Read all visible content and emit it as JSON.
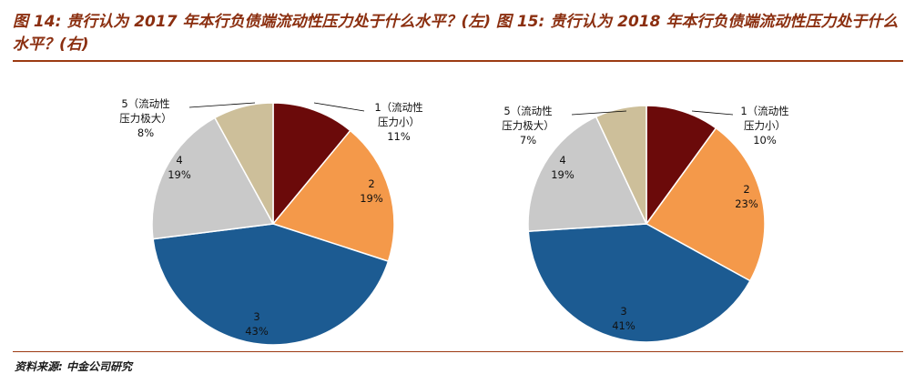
{
  "title": "图 14: 贵行认为 2017 年本行负债端流动性压力处于什么水平？(左)  图 15: 贵行认为 2018 年本行负债端流动性压力处于什么水平？(右)",
  "source": "资料来源: 中金公司研究",
  "colors": {
    "slice_1": "#6b0a0a",
    "slice_2": "#f4994a",
    "slice_3": "#1c5b92",
    "slice_4": "#c9c9c9",
    "slice_5": "#cdbf9a",
    "title": "#8b2f10",
    "rule": "#9c3a12"
  },
  "chart_data": [
    {
      "type": "pie",
      "title": "",
      "categories": [
        "1（流动性压力小）",
        "2",
        "3",
        "4",
        "5（流动性压力极大）"
      ],
      "values": [
        11,
        19,
        43,
        19,
        8
      ],
      "labels": [
        {
          "lines": [
            "1（流动性",
            "压力小）",
            "11%"
          ]
        },
        {
          "lines": [
            "2",
            "19%"
          ]
        },
        {
          "lines": [
            "3",
            "43%"
          ]
        },
        {
          "lines": [
            "4",
            "19%"
          ]
        },
        {
          "lines": [
            "5（流动性",
            "压力极大）",
            "8%"
          ]
        }
      ]
    },
    {
      "type": "pie",
      "title": "",
      "categories": [
        "1（流动性压力小）",
        "2",
        "3",
        "4",
        "5（流动性压力极大）"
      ],
      "values": [
        10,
        23,
        41,
        19,
        7
      ],
      "labels": [
        {
          "lines": [
            "1（流动性",
            "压力小）",
            "10%"
          ]
        },
        {
          "lines": [
            "2",
            "23%"
          ]
        },
        {
          "lines": [
            "3",
            "41%"
          ]
        },
        {
          "lines": [
            "4",
            "19%"
          ]
        },
        {
          "lines": [
            "5（流动性",
            "压力极大）",
            "7%"
          ]
        }
      ]
    }
  ]
}
